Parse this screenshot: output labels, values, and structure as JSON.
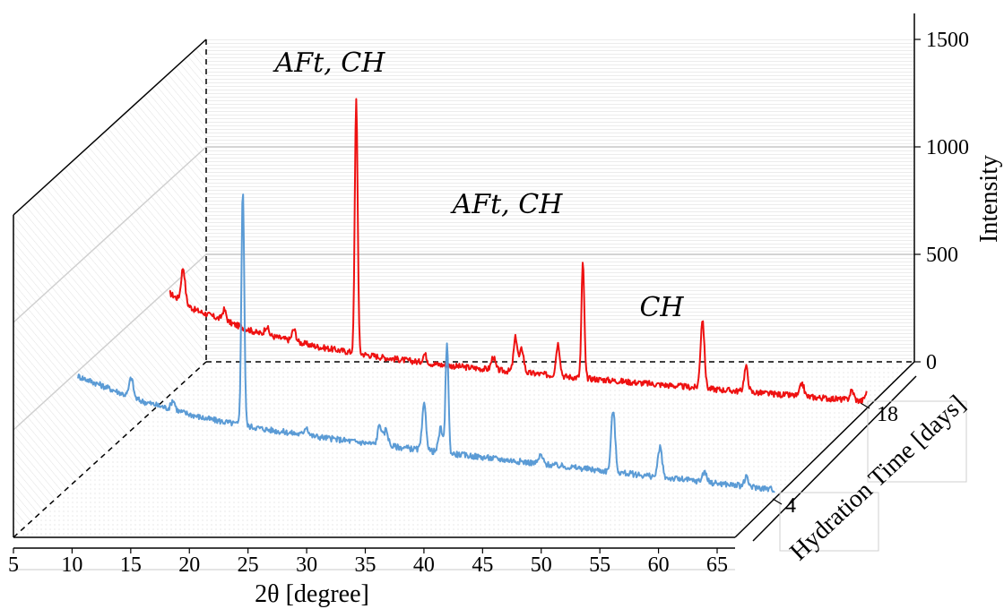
{
  "chart_data": {
    "type": "line",
    "view": "3d-waterfall",
    "xlabel": "2θ [degree]",
    "ylabel": "Intensity",
    "zlabel": "Hydration Time [days]",
    "x_ticks": [
      "5",
      "10",
      "15",
      "20",
      "25",
      "30",
      "35",
      "40",
      "45",
      "50",
      "55",
      "60",
      "65"
    ],
    "y_ticks": [
      "0",
      "500",
      "1000",
      "1500"
    ],
    "z_ticks": [
      "4",
      "18"
    ],
    "xlim": [
      5,
      65
    ],
    "ylim": [
      0,
      1500
    ],
    "series": [
      {
        "hydration_days": 18,
        "color": "#ee1111",
        "baseline": [
          [
            8,
            320
          ],
          [
            10,
            250
          ],
          [
            15,
            160
          ],
          [
            20,
            110
          ],
          [
            25,
            80
          ],
          [
            30,
            60
          ],
          [
            40,
            40
          ],
          [
            50,
            25
          ],
          [
            55,
            18
          ],
          [
            60,
            12
          ],
          [
            64,
            8
          ]
        ],
        "peaks": [
          [
            9.1,
            160
          ],
          [
            12.4,
            50
          ],
          [
            15.8,
            40
          ],
          [
            18.0,
            55
          ],
          [
            23.0,
            1190
          ],
          [
            28.5,
            40
          ],
          [
            34.0,
            60
          ],
          [
            35.8,
            160
          ],
          [
            36.3,
            110
          ],
          [
            39.2,
            150
          ],
          [
            41.2,
            540
          ],
          [
            50.8,
            320
          ],
          [
            54.3,
            115
          ],
          [
            58.8,
            60
          ],
          [
            62.8,
            45
          ],
          [
            64.0,
            40
          ]
        ]
      },
      {
        "hydration_days": 4,
        "color": "#5b9bd5",
        "baseline": [
          [
            10,
            250
          ],
          [
            15,
            160
          ],
          [
            20,
            105
          ],
          [
            25,
            78
          ],
          [
            30,
            62
          ],
          [
            40,
            40
          ],
          [
            50,
            25
          ],
          [
            55,
            18
          ],
          [
            60,
            12
          ],
          [
            65,
            6
          ]
        ],
        "peaks": [
          [
            14.2,
            90
          ],
          [
            17.5,
            45
          ],
          [
            23.0,
            1100
          ],
          [
            28.0,
            40
          ],
          [
            33.8,
            95
          ],
          [
            34.3,
            75
          ],
          [
            37.3,
            210
          ],
          [
            38.6,
            110
          ],
          [
            39.1,
            520
          ],
          [
            46.5,
            40
          ],
          [
            52.2,
            290
          ],
          [
            55.9,
            140
          ],
          [
            59.4,
            50
          ],
          [
            62.7,
            40
          ]
        ]
      }
    ],
    "annotations": [
      "AFt, CH",
      "AFt, CH",
      "CH"
    ]
  }
}
